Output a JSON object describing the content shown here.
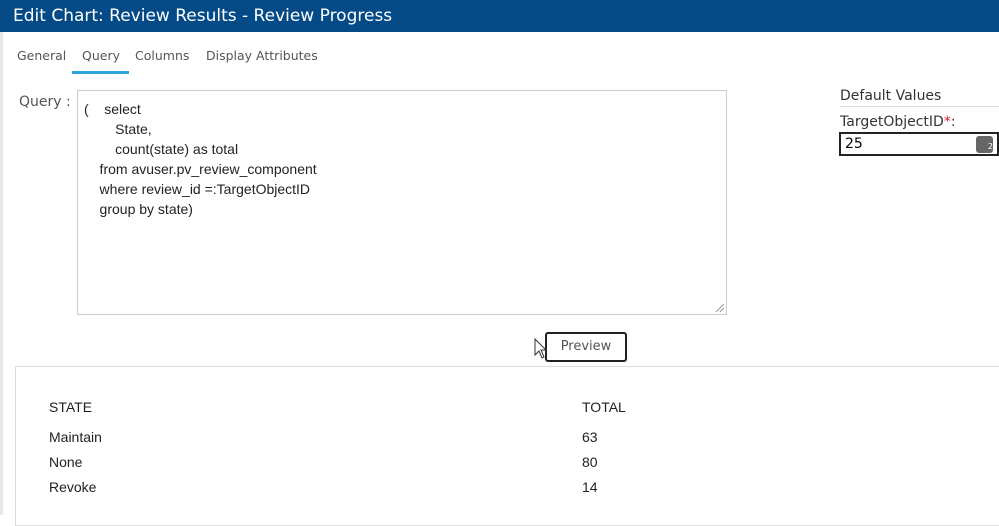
{
  "title": "Edit Chart: Review Results - Review Progress",
  "tabs": [
    {
      "label": "General"
    },
    {
      "label": "Query",
      "active": true
    },
    {
      "label": "Columns"
    },
    {
      "label": "Display Attributes"
    }
  ],
  "query": {
    "label": "Query :",
    "text": "(    select\n        State,\n        count(state) as total\n    from avuser.pv_review_component\n    where review_id =:TargetObjectID\n    group by state)"
  },
  "defaults": {
    "heading": "Default Values",
    "param_label": "TargetObjectID",
    "required_mark": "*",
    "colon": ":",
    "param_value": "25"
  },
  "preview_label": "Preview",
  "results": {
    "columns": [
      "STATE",
      "TOTAL"
    ],
    "rows": [
      [
        "Maintain",
        "63"
      ],
      [
        "None",
        "80"
      ],
      [
        "Revoke",
        "14"
      ]
    ]
  },
  "colors": {
    "titlebar": "#044a86",
    "tab_underline": "#2ba3d8"
  }
}
